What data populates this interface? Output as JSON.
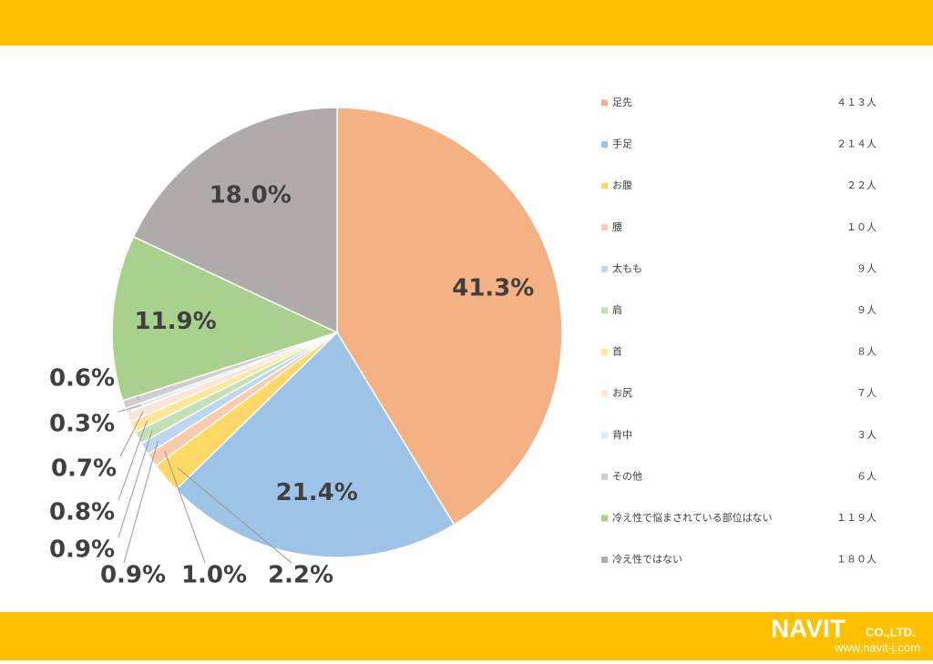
{
  "chart_data": {
    "type": "pie",
    "categories": [
      "足先",
      "手足",
      "お腹",
      "腰",
      "太もも",
      "肩",
      "首",
      "お尻",
      "背中",
      "その他",
      "冷え性で悩まされている部位はない",
      "冷え性ではない"
    ],
    "values": [
      41.3,
      21.4,
      2.2,
      1.0,
      0.9,
      0.9,
      0.8,
      0.7,
      0.3,
      0.6,
      11.9,
      18.0
    ],
    "value_labels": [
      "41.3%",
      "21.4%",
      "2.2%",
      "1.0%",
      "0.9%",
      "0.9%",
      "0.8%",
      "0.7%",
      "0.3%",
      "0.6%",
      "11.9%",
      "18.0%"
    ],
    "counts": [
      413,
      214,
      22,
      10,
      9,
      9,
      8,
      7,
      3,
      6,
      119,
      180
    ],
    "count_labels": [
      "４１３人",
      "２１４人",
      "２２人",
      "１０人",
      "９人",
      "９人",
      "８人",
      "７人",
      "３人",
      "６人",
      "１１９人",
      "１８０人"
    ],
    "colors": [
      "#F4B183",
      "#9DC3E6",
      "#FFD966",
      "#F8CBAD",
      "#BDD7EE",
      "#C5E0B4",
      "#FFE699",
      "#FBE5D6",
      "#DEEBF7",
      "#D0CECE",
      "#A9D18E",
      "#AFABAB"
    ]
  },
  "footer": {
    "logo": "NAVIT",
    "company": "CO.,LTD.",
    "url": "www.navit-j.com"
  }
}
